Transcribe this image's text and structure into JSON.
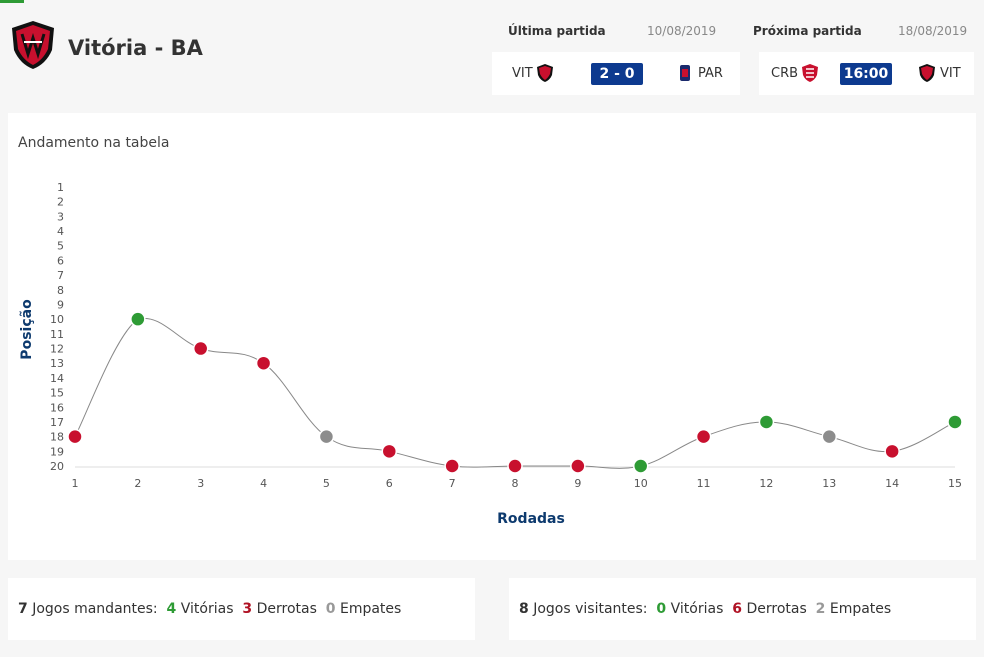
{
  "team": {
    "name": "Vitória - BA"
  },
  "last_match": {
    "label": "Última partida",
    "date": "10/08/2019",
    "home": "VIT",
    "score": "2 - 0",
    "away": "PAR"
  },
  "next_match": {
    "label": "Próxima partida",
    "date": "18/08/2019",
    "home": "CRB",
    "time": "16:00",
    "away": "VIT"
  },
  "chart_title": "Andamento na tabela",
  "colors": {
    "win": "#2e9b35",
    "loss": "#c8102e",
    "draw": "#8c8c8c",
    "accent": "#0d3a8f"
  },
  "chart_data": {
    "type": "line",
    "xlabel": "Rodadas",
    "ylabel": "Posição",
    "x": [
      1,
      2,
      3,
      4,
      5,
      6,
      7,
      8,
      9,
      10,
      11,
      12,
      13,
      14,
      15
    ],
    "y_ticks": [
      1,
      2,
      3,
      4,
      5,
      6,
      7,
      8,
      9,
      10,
      11,
      12,
      13,
      14,
      15,
      16,
      17,
      18,
      19,
      20
    ],
    "ylim": [
      1,
      20
    ],
    "y_inverted": true,
    "series": [
      {
        "values": [
          18,
          10,
          12,
          13,
          18,
          19,
          20,
          20,
          20,
          20,
          18,
          17,
          18,
          19,
          17
        ],
        "results": [
          "loss",
          "win",
          "loss",
          "loss",
          "draw",
          "loss",
          "loss",
          "loss",
          "loss",
          "win",
          "loss",
          "win",
          "draw",
          "loss",
          "win"
        ]
      }
    ]
  },
  "home_stats": {
    "count": "7",
    "label": "Jogos mandantes:",
    "wins": "4",
    "wins_label": "Vitórias",
    "losses": "3",
    "losses_label": "Derrotas",
    "draws": "0",
    "draws_label": "Empates"
  },
  "away_stats": {
    "count": "8",
    "label": "Jogos visitantes:",
    "wins": "0",
    "wins_label": "Vitórias",
    "losses": "6",
    "losses_label": "Derrotas",
    "draws": "2",
    "draws_label": "Empates"
  }
}
